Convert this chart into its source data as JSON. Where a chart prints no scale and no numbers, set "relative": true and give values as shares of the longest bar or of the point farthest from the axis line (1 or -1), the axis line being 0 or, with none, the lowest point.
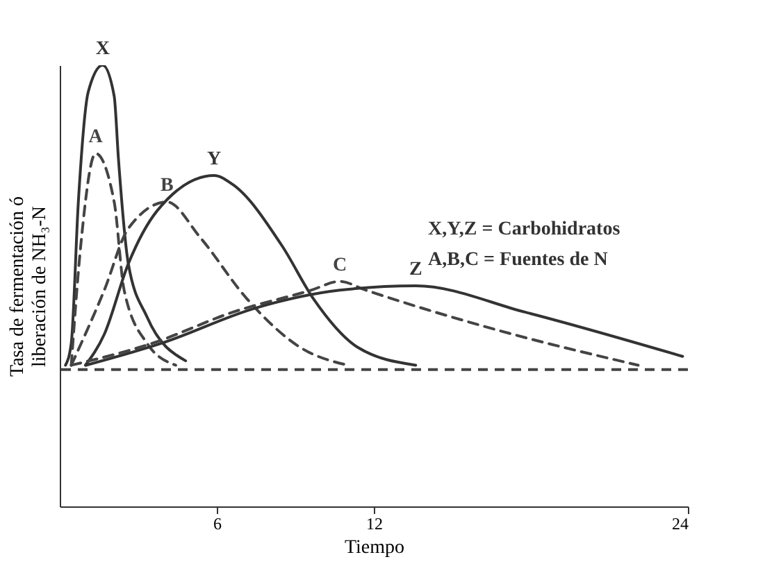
{
  "chart_data": {
    "type": "line",
    "relative": true,
    "xlabel": "Tiempo",
    "ylabel": "Tasa de fermentación ó\nliberación de NH₃-N",
    "xlim": [
      0,
      24
    ],
    "xticks": [
      6,
      12,
      24
    ],
    "grid": false,
    "marker": "none",
    "annotations": [
      "X,Y,Z = Carbohidratos",
      "A,B,C = Fuentes de N"
    ],
    "ref_lines": [
      {
        "axis": "y",
        "value": 0.31,
        "color": "#444444",
        "line_style": "dashed"
      }
    ],
    "series": [
      {
        "name": "X",
        "color": "#333333",
        "line_style": "solid",
        "x": [
          0.22,
          0.44,
          0.71,
          1.09,
          1.64,
          2.08,
          2.24,
          2.62,
          3.33,
          4.81
        ],
        "values": [
          0.32,
          0.37,
          0.69,
          0.94,
          1.0,
          0.93,
          0.79,
          0.55,
          0.43,
          0.33
        ]
      },
      {
        "name": "A",
        "color": "#444444",
        "line_style": "dashed",
        "x": [
          0.44,
          0.8,
          1.37,
          2.08,
          2.46,
          3.33,
          4.43
        ],
        "values": [
          0.32,
          0.59,
          0.8,
          0.69,
          0.49,
          0.37,
          0.32
        ]
      },
      {
        "name": "B",
        "color": "#444444",
        "line_style": "dashed",
        "x": [
          0.44,
          1.7,
          2.62,
          4.1,
          5.36,
          7.16,
          9.2,
          11.0
        ],
        "values": [
          0.32,
          0.49,
          0.63,
          0.69,
          0.61,
          0.47,
          0.36,
          0.32
        ]
      },
      {
        "name": "Y",
        "color": "#333333",
        "line_style": "solid",
        "x": [
          0.98,
          1.7,
          2.62,
          3.72,
          5.9,
          6.6,
          8.5,
          9.7,
          11.4,
          13.6
        ],
        "values": [
          0.32,
          0.39,
          0.55,
          0.67,
          0.75,
          0.73,
          0.59,
          0.47,
          0.36,
          0.32
        ]
      },
      {
        "name": "C",
        "color": "#444444",
        "line_style": "dashed",
        "x": [
          0.44,
          3.55,
          6.6,
          9.6,
          10.7,
          11.7,
          16.7,
          22.1
        ],
        "values": [
          0.32,
          0.37,
          0.44,
          0.49,
          0.51,
          0.49,
          0.4,
          0.32
        ]
      },
      {
        "name": "Z",
        "color": "#333333",
        "line_style": "solid",
        "x": [
          1.0,
          3.9,
          7.5,
          10.7,
          13.6,
          17.8,
          23.8
        ],
        "values": [
          0.32,
          0.37,
          0.45,
          0.49,
          0.5,
          0.44,
          0.34
        ]
      }
    ]
  }
}
